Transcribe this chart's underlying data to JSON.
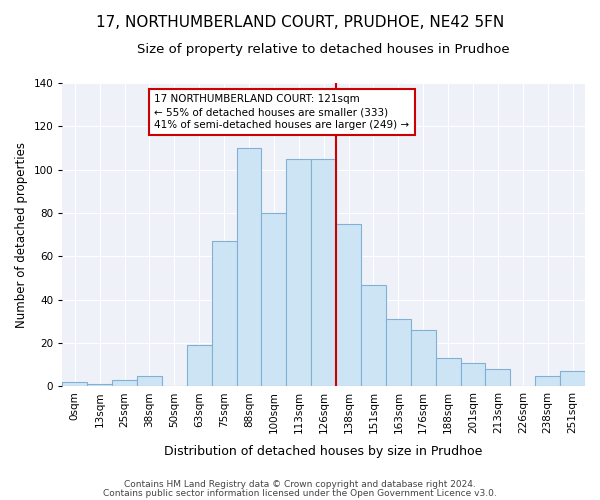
{
  "title": "17, NORTHUMBERLAND COURT, PRUDHOE, NE42 5FN",
  "subtitle": "Size of property relative to detached houses in Prudhoe",
  "xlabel": "Distribution of detached houses by size in Prudhoe",
  "ylabel": "Number of detached properties",
  "bar_labels": [
    "0sqm",
    "13sqm",
    "25sqm",
    "38sqm",
    "50sqm",
    "63sqm",
    "75sqm",
    "88sqm",
    "100sqm",
    "113sqm",
    "126sqm",
    "138sqm",
    "151sqm",
    "163sqm",
    "176sqm",
    "188sqm",
    "201sqm",
    "213sqm",
    "226sqm",
    "238sqm",
    "251sqm"
  ],
  "bar_values": [
    2,
    1,
    3,
    5,
    0,
    19,
    67,
    110,
    80,
    105,
    105,
    75,
    47,
    31,
    26,
    13,
    11,
    8,
    0,
    5,
    7
  ],
  "bar_color": "#cde4f5",
  "bar_edge_color": "#82afd4",
  "vline_x": 10.5,
  "vline_color": "#cc0000",
  "annotation_title": "17 NORTHUMBERLAND COURT: 121sqm",
  "annotation_line1": "← 55% of detached houses are smaller (333)",
  "annotation_line2": "41% of semi-detached houses are larger (249) →",
  "annotation_box_color": "#ffffff",
  "annotation_box_edge": "#cc0000",
  "footer1": "Contains HM Land Registry data © Crown copyright and database right 2024.",
  "footer2": "Contains public sector information licensed under the Open Government Licence v3.0.",
  "ylim": [
    0,
    140
  ],
  "title_fontsize": 11,
  "subtitle_fontsize": 9.5,
  "xlabel_fontsize": 9,
  "ylabel_fontsize": 8.5,
  "tick_fontsize": 7.5,
  "footer_fontsize": 6.5,
  "annotation_fontsize": 7.5
}
